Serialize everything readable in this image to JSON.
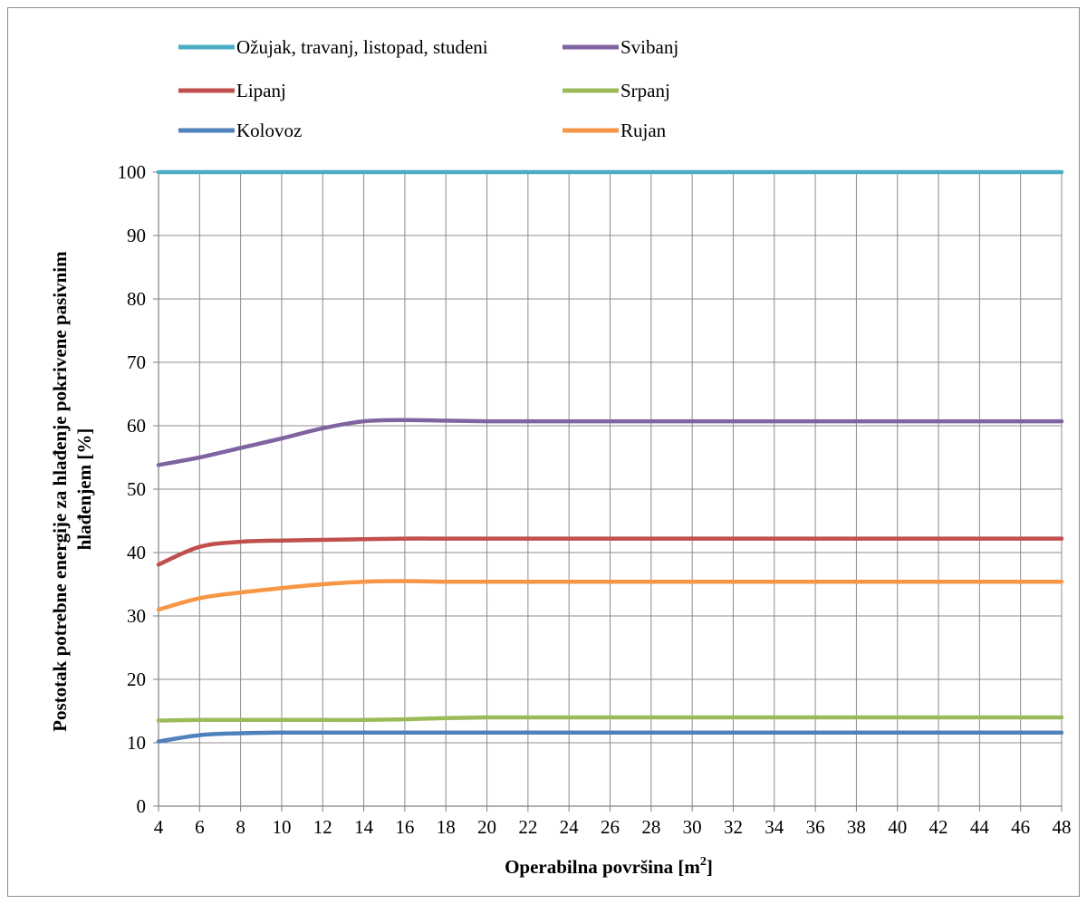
{
  "chart_data": {
    "type": "line",
    "title": "",
    "xlabel": "Operabilna površina [m",
    "xlabel_sup": "2",
    "xlabel_end": "]",
    "ylabel_line1": "Postotak potrebne energije za hlađenje pokrivene pasivnim",
    "ylabel_line2": "hlađenjem [%]",
    "x": [
      4,
      6,
      8,
      10,
      12,
      14,
      16,
      18,
      20,
      22,
      24,
      26,
      28,
      30,
      32,
      34,
      36,
      38,
      40,
      42,
      44,
      46,
      48
    ],
    "xlim": [
      4,
      48
    ],
    "ylim": [
      0,
      100
    ],
    "y_ticks": [
      0,
      10,
      20,
      30,
      40,
      50,
      60,
      70,
      80,
      90,
      100
    ],
    "grid": true,
    "legend_position": "top",
    "series": [
      {
        "name": "Ožujak, travanj, listopad, studeni",
        "color": "#4bacc6",
        "values": [
          100,
          100,
          100,
          100,
          100,
          100,
          100,
          100,
          100,
          100,
          100,
          100,
          100,
          100,
          100,
          100,
          100,
          100,
          100,
          100,
          100,
          100,
          100
        ]
      },
      {
        "name": "Svibanj",
        "color": "#8064a2",
        "values": [
          53.8,
          55,
          56.5,
          58,
          59.6,
          60.7,
          60.9,
          60.8,
          60.7,
          60.7,
          60.7,
          60.7,
          60.7,
          60.7,
          60.7,
          60.7,
          60.7,
          60.7,
          60.7,
          60.7,
          60.7,
          60.7,
          60.7
        ]
      },
      {
        "name": "Lipanj",
        "color": "#c0504d",
        "values": [
          38.1,
          40.9,
          41.7,
          41.9,
          42,
          42.1,
          42.2,
          42.2,
          42.2,
          42.2,
          42.2,
          42.2,
          42.2,
          42.2,
          42.2,
          42.2,
          42.2,
          42.2,
          42.2,
          42.2,
          42.2,
          42.2,
          42.2
        ]
      },
      {
        "name": "Srpanj",
        "color": "#9bbb59",
        "values": [
          13.5,
          13.6,
          13.6,
          13.6,
          13.6,
          13.6,
          13.7,
          13.9,
          14,
          14,
          14,
          14,
          14,
          14,
          14,
          14,
          14,
          14,
          14,
          14,
          14,
          14,
          14
        ]
      },
      {
        "name": "Kolovoz",
        "color": "#4f81bd",
        "values": [
          10.2,
          11.2,
          11.5,
          11.6,
          11.6,
          11.6,
          11.6,
          11.6,
          11.6,
          11.6,
          11.6,
          11.6,
          11.6,
          11.6,
          11.6,
          11.6,
          11.6,
          11.6,
          11.6,
          11.6,
          11.6,
          11.6,
          11.6
        ]
      },
      {
        "name": "Rujan",
        "color": "#f79646",
        "values": [
          31,
          32.8,
          33.7,
          34.4,
          35,
          35.4,
          35.5,
          35.4,
          35.4,
          35.4,
          35.4,
          35.4,
          35.4,
          35.4,
          35.4,
          35.4,
          35.4,
          35.4,
          35.4,
          35.4,
          35.4,
          35.4,
          35.4
        ]
      }
    ]
  }
}
